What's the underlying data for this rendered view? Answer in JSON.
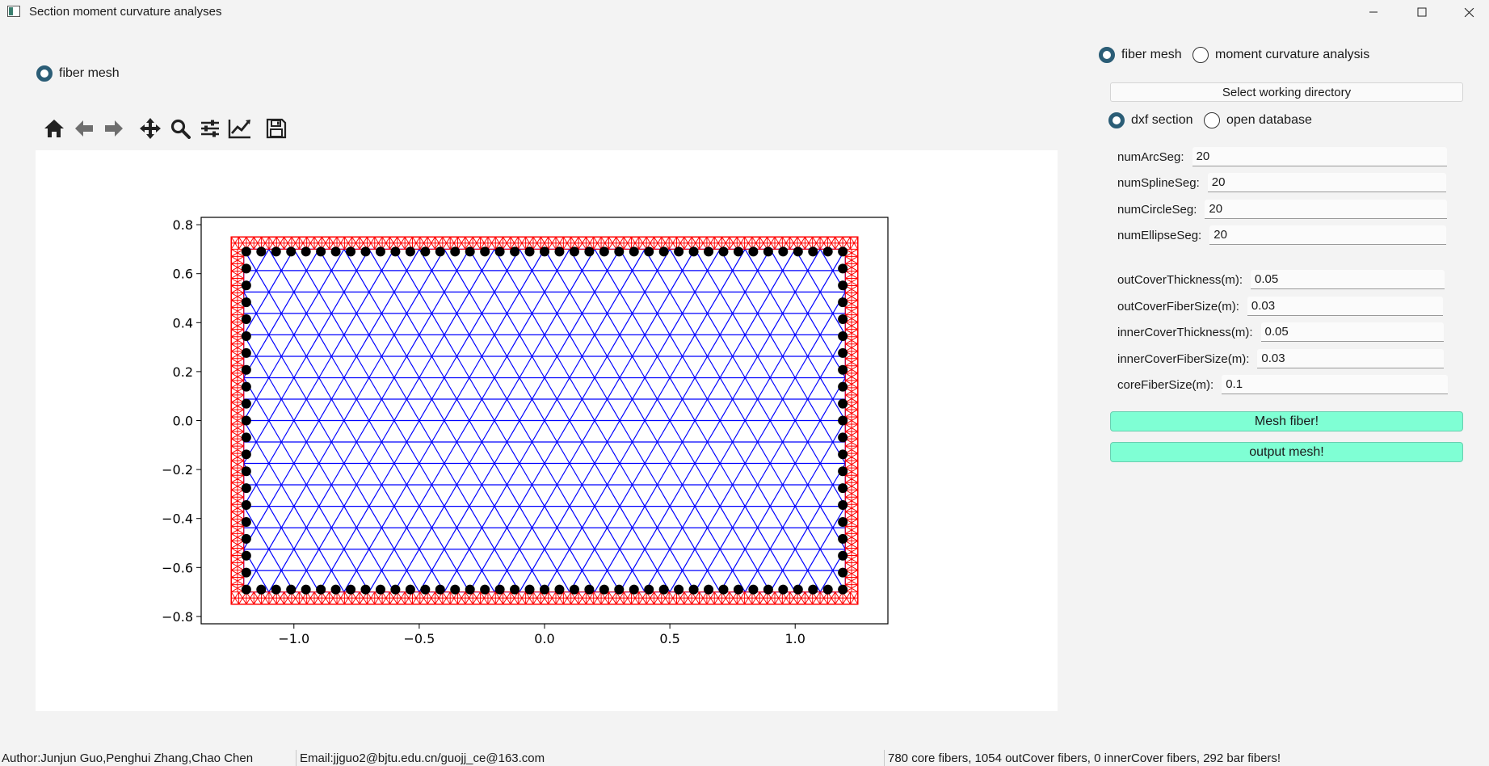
{
  "window": {
    "title": "Section moment curvature analyses",
    "controls": [
      "minimize",
      "maximize",
      "close"
    ]
  },
  "left_panel": {
    "mode_radio": {
      "label": "fiber mesh",
      "checked": true
    }
  },
  "toolbar": {
    "icons": [
      "home-icon",
      "back-icon",
      "forward-icon",
      "pan-icon",
      "zoom-icon",
      "configure-subplots-icon",
      "edit-axis-icon",
      "save-icon"
    ]
  },
  "right_panel": {
    "top_radios": [
      {
        "label": "fiber mesh",
        "checked": true
      },
      {
        "label": "moment curvature analysis",
        "checked": false
      }
    ],
    "select_dir_button": "Select working directory",
    "source_radios": [
      {
        "label": "dxf section",
        "checked": true
      },
      {
        "label": "open database",
        "checked": false
      }
    ],
    "seg_fields": [
      {
        "label": "numArcSeg:",
        "value": "20"
      },
      {
        "label": "numSplineSeg:",
        "value": "20"
      },
      {
        "label": "numCircleSeg:",
        "value": "20"
      },
      {
        "label": "numEllipseSeg:",
        "value": "20"
      }
    ],
    "size_fields": [
      {
        "label": "outCoverThickness(m):",
        "value": "0.05"
      },
      {
        "label": "outCoverFiberSize(m):",
        "value": "0.03"
      },
      {
        "label": "innerCoverThickness(m):",
        "value": "0.05"
      },
      {
        "label": "innerCoverFiberSize(m):",
        "value": "0.03"
      },
      {
        "label": "coreFiberSize(m):",
        "value": "0.1"
      }
    ],
    "mesh_button": "Mesh fiber!",
    "output_button": "output mesh!"
  },
  "statusbar": {
    "author": "Author:Junjun Guo,Penghui Zhang,Chao Chen",
    "email": "Email:jjguo2@bjtu.edu.cn/guojj_ce@163.com",
    "result": "780 core fibers, 1054 outCover fibers, 0 innerCover fibers, 292 bar fibers!"
  },
  "chart_data": {
    "type": "scatter",
    "title": "",
    "xlabel": "",
    "ylabel": "",
    "xlim": [
      -1.37,
      1.37
    ],
    "ylim": [
      -0.83,
      0.83
    ],
    "xticks": [
      -1.0,
      -0.5,
      0.0,
      0.5,
      1.0
    ],
    "xtick_labels": [
      "−1.0",
      "−0.5",
      "0.0",
      "0.5",
      "1.0"
    ],
    "yticks": [
      0.8,
      0.6,
      0.4,
      0.2,
      0.0,
      -0.2,
      -0.4,
      -0.6,
      -0.8
    ],
    "ytick_labels": [
      "0.8",
      "0.6",
      "0.4",
      "0.2",
      "0.0",
      "−0.2",
      "−0.4",
      "−0.6",
      "−0.8"
    ],
    "section": {
      "x": [
        -1.25,
        1.25
      ],
      "y": [
        -0.75,
        0.75
      ]
    },
    "cover_thickness": 0.05,
    "cover_fiber_size": 0.03,
    "core_fiber_size": 0.1,
    "bars": {
      "x_min": -1.19,
      "x_max": 1.19,
      "y_min": -0.69,
      "y_max": 0.69,
      "count_top": 41,
      "count_side": 21
    },
    "colors": {
      "cover": "#ff0000",
      "core": "#0000ff",
      "bar": "#000000"
    }
  }
}
